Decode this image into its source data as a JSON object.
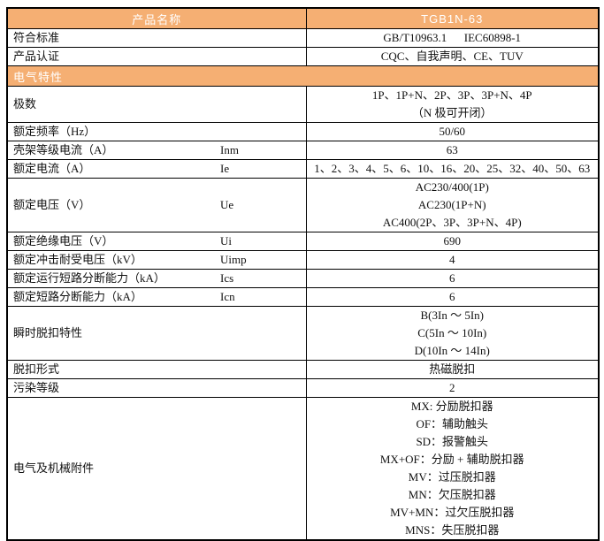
{
  "colors": {
    "accent_orange": "#F5AF73",
    "band_text": "#FFFFFF",
    "border": "#000000",
    "body_text": "#111111",
    "background": "#FFFFFF"
  },
  "table": {
    "rows": [
      {
        "kind": "header",
        "label": "产品名称",
        "value_lines": [
          "TGB1N-63"
        ]
      },
      {
        "kind": "data",
        "label": "符合标准",
        "symbol": "",
        "value_lines": [
          "GB/T10963.1　  IEC60898-1"
        ]
      },
      {
        "kind": "data",
        "label": "产品认证",
        "symbol": "",
        "value_lines": [
          "CQC、自我声明、CE、TUV"
        ]
      },
      {
        "kind": "section",
        "label": "电气特性"
      },
      {
        "kind": "data",
        "label": "极数",
        "symbol": "",
        "value_lines": [
          "1P、1P+N、2P、3P、3P+N、4P",
          "（N 极可开闭）"
        ]
      },
      {
        "kind": "data",
        "label": "额定频率（Hz）",
        "symbol": "",
        "value_lines": [
          "50/60"
        ]
      },
      {
        "kind": "data",
        "label": "壳架等级电流（A）",
        "symbol": "Inm",
        "value_lines": [
          "63"
        ]
      },
      {
        "kind": "data",
        "label": "额定电流（A）",
        "symbol": "Ie",
        "value_lines": [
          "1、2、3、4、5、6、10、16、20、25、32、40、50、63"
        ]
      },
      {
        "kind": "data",
        "label": "额定电压（V）",
        "symbol": "Ue",
        "value_lines": [
          "AC230/400(1P)",
          "AC230(1P+N)",
          "AC400(2P、3P、3P+N、4P)"
        ]
      },
      {
        "kind": "data",
        "label": "额定绝缘电压（V）",
        "symbol": "Ui",
        "value_lines": [
          "690"
        ]
      },
      {
        "kind": "data",
        "label": "额定冲击耐受电压（kV）",
        "symbol": "Uimp",
        "value_lines": [
          "4"
        ]
      },
      {
        "kind": "data",
        "label": "额定运行短路分断能力（kA）",
        "symbol": "Ics",
        "value_lines": [
          "6"
        ]
      },
      {
        "kind": "data",
        "label": "额定短路分断能力（kA）",
        "symbol": "Icn",
        "value_lines": [
          "6"
        ]
      },
      {
        "kind": "data",
        "label": "瞬时脱扣特性",
        "symbol": "",
        "value_lines": [
          "B(3In ～ 5In)",
          "C(5In ～ 10In)",
          "D(10In ～ 14In)"
        ]
      },
      {
        "kind": "data",
        "label": "脱扣形式",
        "symbol": "",
        "value_lines": [
          "热磁脱扣"
        ]
      },
      {
        "kind": "data",
        "label": "污染等级",
        "symbol": "",
        "value_lines": [
          "2"
        ]
      },
      {
        "kind": "data",
        "label": "电气及机械附件",
        "symbol": "",
        "value_lines": [
          "MX: 分励脱扣器",
          "OF：辅助触头",
          "SD：报警触头",
          "MX+OF：分励 + 辅助脱扣器",
          "MV：过压脱扣器",
          "MN：欠压脱扣器",
          "MV+MN：过欠压脱扣器",
          "MNS：失压脱扣器"
        ]
      }
    ]
  }
}
